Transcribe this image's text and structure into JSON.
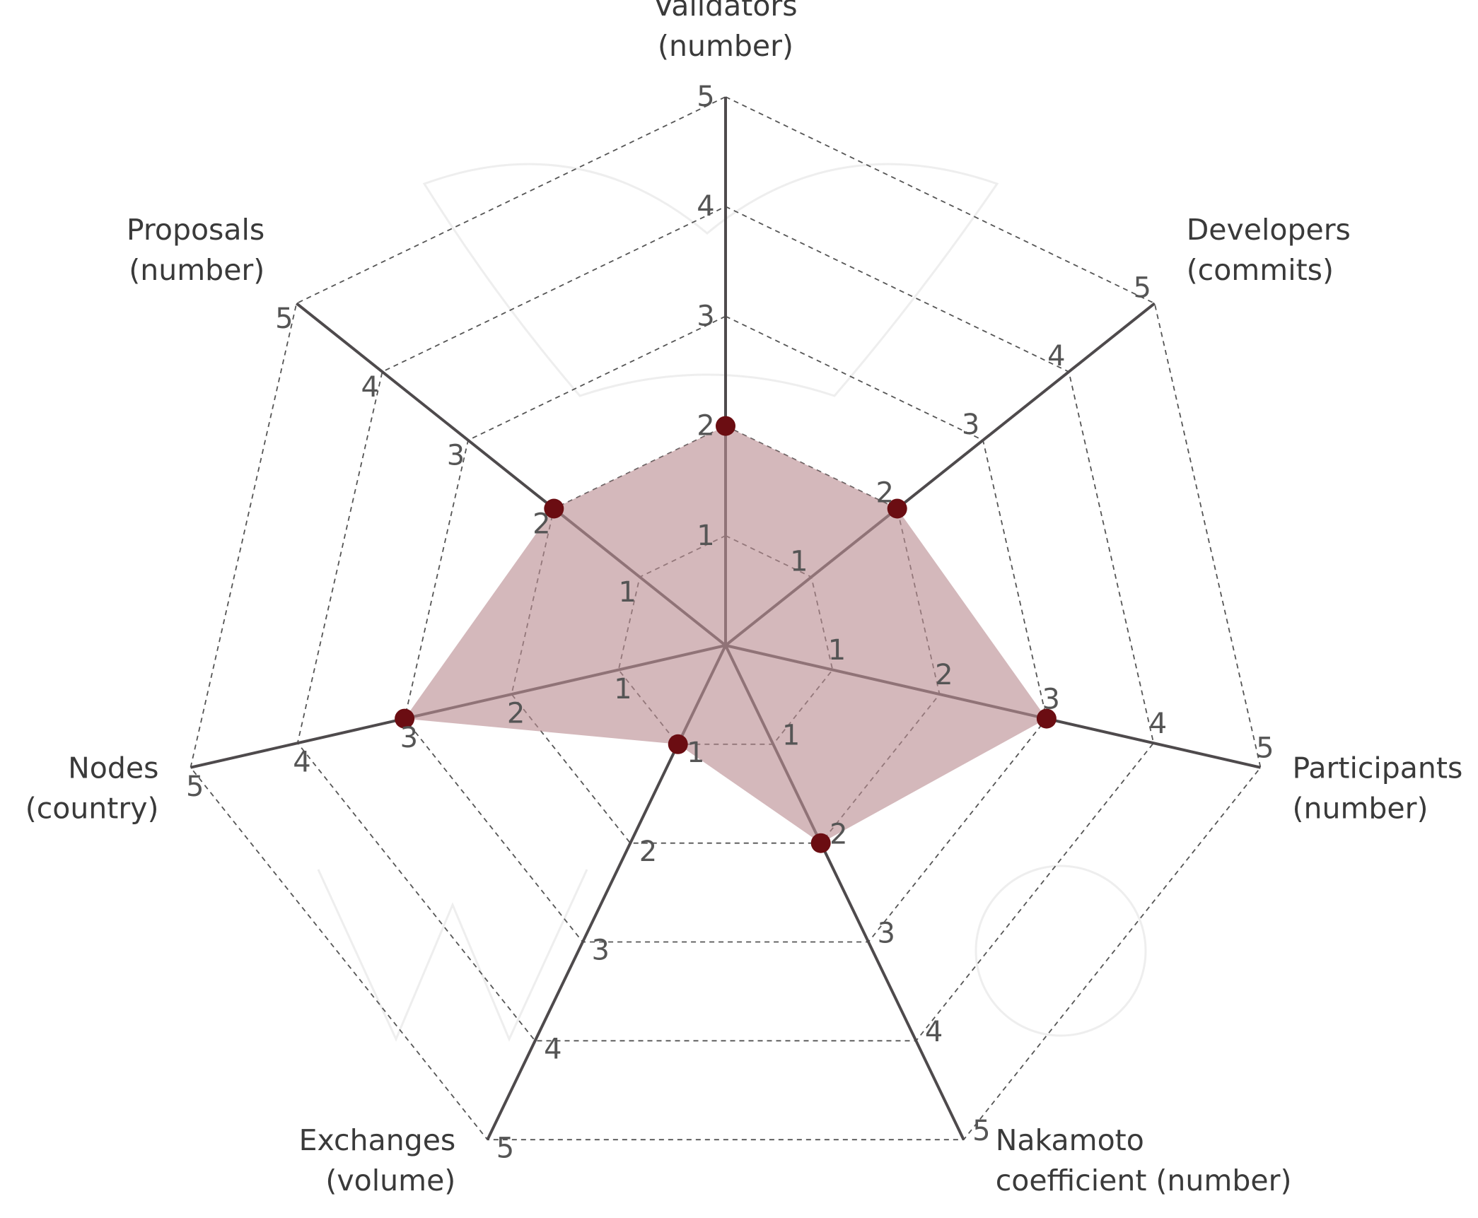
{
  "chart_data": {
    "type": "radar",
    "axes": [
      {
        "label_lines": [
          "Validators",
          "(number)"
        ],
        "value": 2
      },
      {
        "label_lines": [
          "Developers",
          "(commits)"
        ],
        "value": 2
      },
      {
        "label_lines": [
          "Participants",
          "(number)"
        ],
        "value": 3
      },
      {
        "label_lines": [
          "Nakamoto",
          "coefficient  (number)"
        ],
        "value": 2
      },
      {
        "label_lines": [
          "Exchanges",
          "(volume)"
        ],
        "value": 1
      },
      {
        "label_lines": [
          "Nodes",
          "(country)"
        ],
        "value": 3
      },
      {
        "label_lines": [
          "Proposals",
          "(number)"
        ],
        "value": 2
      }
    ],
    "rmax": 5,
    "tick_labels": [
      "1",
      "2",
      "3",
      "4",
      "5"
    ],
    "grid": "dashed",
    "colors": {
      "area": "#b98c92",
      "point": "#6b0d12",
      "spoke": "#4e4a4c",
      "grid": "#555555"
    }
  }
}
